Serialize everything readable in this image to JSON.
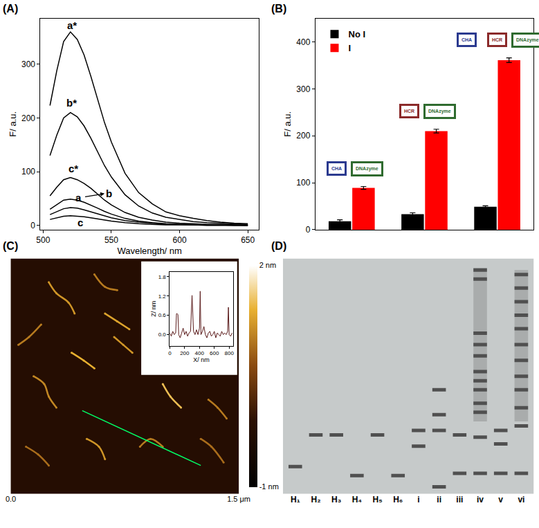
{
  "chart_data": [
    {
      "panel": "(A)",
      "type": "line",
      "x_label": "Wavelength/ nm",
      "y_label": "F/ a.u.",
      "x": [
        505,
        510,
        515,
        520,
        525,
        530,
        535,
        540,
        545,
        550,
        560,
        570,
        580,
        590,
        600,
        610,
        620,
        630,
        640,
        650
      ],
      "xlim": [
        498,
        658
      ],
      "xticks": [
        500,
        550,
        600,
        650
      ],
      "ylim": [
        -8,
        385
      ],
      "yticks": [
        0,
        100,
        200,
        300
      ],
      "grid": false,
      "color": "#000000",
      "series": [
        {
          "name": "a*",
          "label_at": [
            521,
            372
          ],
          "values": [
            223,
            288,
            342,
            360,
            346,
            317,
            277,
            234,
            191,
            155,
            97,
            61,
            40,
            25,
            18,
            13,
            9,
            6,
            4,
            3
          ]
        },
        {
          "name": "b*",
          "label_at": [
            521,
            228
          ],
          "values": [
            130,
            168,
            200,
            210,
            202,
            185,
            162,
            137,
            111,
            90,
            57,
            36,
            23,
            15,
            11,
            7,
            5,
            4,
            3,
            2
          ]
        },
        {
          "name": "c*",
          "label_at": [
            522,
            106
          ],
          "values": [
            55,
            71,
            85,
            89,
            85,
            78,
            69,
            58,
            47,
            38,
            24,
            15,
            10,
            6,
            4,
            3,
            2,
            2,
            1,
            1
          ]
        },
        {
          "name": "a",
          "label_at": [
            526,
            52
          ],
          "values": [
            30,
            39,
            47,
            49,
            47,
            43,
            38,
            32,
            26,
            21,
            13,
            8,
            5,
            3,
            2,
            2,
            1,
            1,
            1,
            0
          ]
        },
        {
          "name": "b",
          "label_at": [
            548,
            60
          ],
          "values": [
            20,
            26,
            31,
            33,
            32,
            29,
            25,
            21,
            17,
            14,
            9,
            6,
            4,
            2,
            2,
            1,
            1,
            1,
            0,
            0
          ]
        },
        {
          "name": "c",
          "label_at": [
            527,
            6
          ],
          "values": [
            11,
            14,
            17,
            18,
            17,
            16,
            14,
            12,
            10,
            8,
            5,
            3,
            2,
            1,
            1,
            1,
            0,
            0,
            0,
            0
          ]
        }
      ],
      "arrow": {
        "from": [
          530,
          53
        ],
        "to": [
          545,
          59
        ]
      }
    },
    {
      "panel": "(B)",
      "type": "bar",
      "y_label": "F/ a.u.",
      "categories": [
        null,
        null,
        null
      ],
      "ylim": [
        0,
        450
      ],
      "yticks": [
        0,
        100,
        200,
        300,
        400
      ],
      "grid": false,
      "legend": "upper left",
      "tick_labels": "y",
      "series": [
        {
          "name": "No I",
          "color": "#000000",
          "values": [
            18,
            33,
            49
          ],
          "errors": [
            3,
            3,
            2
          ]
        },
        {
          "name": "I",
          "color": "#ff0000",
          "values": [
            89,
            210,
            361
          ],
          "errors": [
            3,
            4,
            5
          ]
        }
      ],
      "icons": [
        [
          {
            "text": "CHA",
            "color": "#2b3a8f"
          },
          {
            "text": "DNAzyme",
            "color": "#2f6b2f"
          }
        ],
        [
          {
            "text": "HCR",
            "color": "#8b2a2a"
          },
          {
            "text": "DNAzyme",
            "color": "#2f6b2f"
          }
        ],
        [
          {
            "text": "CHA",
            "color": "#2b3a8f"
          },
          {
            "text": "HCR",
            "color": "#8b2a2a"
          },
          {
            "text": "DNAzyme",
            "color": "#2f6b2f"
          }
        ]
      ]
    },
    {
      "panel": "(C)",
      "type": "image",
      "xlim": [
        0,
        1.5
      ],
      "ylim": [
        0,
        1.5
      ],
      "xticks": [
        {
          "value": 0,
          "label": "0.0"
        },
        {
          "value": 1.5,
          "label": "1.5 μm"
        }
      ],
      "tick_labels": "x",
      "background_height": -0.2,
      "colorbar": {
        "range": [
          -1,
          2
        ],
        "ticks": [
          {
            "value": -1,
            "label": "-1 nm"
          },
          {
            "value": 2,
            "label": "2 nm"
          }
        ]
      },
      "fibers": [
        {
          "x": [
            0.05,
            0.12,
            0.2
          ],
          "y": [
            0.95,
            1.0,
            1.08
          ],
          "height": 1.0
        },
        {
          "x": [
            0.25,
            0.3,
            0.38,
            0.42
          ],
          "y": [
            1.35,
            1.28,
            1.22,
            1.15
          ],
          "height": 1.2
        },
        {
          "x": [
            0.55,
            0.62,
            0.7
          ],
          "y": [
            1.4,
            1.32,
            1.3
          ],
          "height": 1.0
        },
        {
          "x": [
            0.62,
            0.7,
            0.78
          ],
          "y": [
            1.15,
            1.1,
            1.05
          ],
          "height": 1.3
        },
        {
          "x": [
            0.15,
            0.22,
            0.25,
            0.3
          ],
          "y": [
            0.75,
            0.7,
            0.62,
            0.55
          ],
          "height": 1.1
        },
        {
          "x": [
            0.4,
            0.48,
            0.55
          ],
          "y": [
            0.9,
            0.85,
            0.8
          ],
          "height": 1.4
        },
        {
          "x": [
            0.68,
            0.74,
            0.8
          ],
          "y": [
            1.0,
            0.95,
            0.9
          ],
          "height": 1.2
        },
        {
          "x": [
            1.0,
            1.05,
            1.12
          ],
          "y": [
            0.7,
            0.62,
            0.55
          ],
          "height": 1.5
        },
        {
          "x": [
            1.3,
            1.36,
            1.42
          ],
          "y": [
            0.6,
            0.55,
            0.48
          ],
          "height": 1.0
        },
        {
          "x": [
            0.1,
            0.18,
            0.25
          ],
          "y": [
            0.3,
            0.25,
            0.18
          ],
          "height": 0.9
        },
        {
          "x": [
            0.5,
            0.58,
            0.62
          ],
          "y": [
            0.35,
            0.3,
            0.22
          ],
          "height": 1.2
        },
        {
          "x": [
            0.85,
            0.92,
            1.0
          ],
          "y": [
            0.3,
            0.35,
            0.3
          ],
          "height": 1.0
        },
        {
          "x": [
            1.25,
            1.32,
            1.4
          ],
          "y": [
            0.35,
            0.3,
            0.2
          ],
          "height": 0.9
        }
      ],
      "profile_line": {
        "x": [
          0.47,
          1.25
        ],
        "y": [
          0.53,
          0.18
        ],
        "color": "#00ff66"
      },
      "inset": {
        "type": "line",
        "x_label": "X/ nm",
        "y_label": "Z/ nm",
        "color": "#5a1a1a",
        "x": [
          0,
          20,
          40,
          60,
          80,
          90,
          100,
          110,
          120,
          140,
          160,
          180,
          200,
          220,
          240,
          260,
          280,
          300,
          320,
          340,
          360,
          380,
          400,
          410,
          420,
          440,
          460,
          480,
          500,
          520,
          540,
          560,
          580,
          600,
          620,
          640,
          660,
          680,
          700,
          720,
          740,
          760,
          780,
          790,
          800,
          820,
          840
        ],
        "values": [
          0.05,
          -0.05,
          0.1,
          0.0,
          0.05,
          0.65,
          0.65,
          0.62,
          0.0,
          -0.1,
          0.05,
          0.2,
          0.0,
          0.1,
          -0.05,
          0.05,
          0.1,
          1.22,
          0.1,
          0.0,
          0.15,
          0.0,
          0.2,
          1.35,
          0.0,
          0.1,
          0.25,
          0.0,
          -0.1,
          0.05,
          0.1,
          -0.05,
          0.0,
          0.1,
          -0.1,
          0.05,
          0.0,
          -0.05,
          0.1,
          0.0,
          0.05,
          0.0,
          0.1,
          0.85,
          0.0,
          -0.05,
          0.05
        ],
        "xlim": [
          0,
          850
        ],
        "xticks": [
          0,
          200,
          400,
          600,
          800
        ],
        "ylim": [
          -0.35,
          1.95
        ],
        "yticks": [
          {
            "value": 0,
            "label": "0.0"
          },
          0.6,
          1.2,
          1.8
        ]
      }
    },
    {
      "panel": "(D)",
      "type": "gel",
      "categories": [
        "H₁",
        "H₂",
        "H₃",
        "H₄",
        "H₅",
        "H₆",
        "i",
        "ii",
        "iii",
        "iv",
        "v",
        "vi"
      ],
      "ylim": [
        1.02,
        -0.02
      ],
      "tick_labels": "x",
      "color": "#505050",
      "bands": [
        [
          0.9
        ],
        [
          0.76
        ],
        [
          0.76
        ],
        [
          0.94
        ],
        [
          0.76
        ],
        [
          0.94
        ],
        [
          0.74,
          0.81
        ],
        [
          0.56,
          0.67,
          0.74,
          0.99
        ],
        [
          0.76,
          0.93
        ],
        [
          0.03,
          0.07,
          0.31,
          0.36,
          0.41,
          0.48,
          0.52,
          0.56,
          0.62,
          0.66,
          0.77,
          0.93
        ],
        [
          0.74,
          0.8,
          0.93
        ],
        [
          0.05,
          0.11,
          0.17,
          0.23,
          0.29,
          0.36,
          0.43,
          0.5,
          0.56,
          0.64,
          0.72,
          0.93
        ]
      ],
      "smears": [
        null,
        null,
        null,
        null,
        null,
        null,
        null,
        null,
        null,
        [
          0.02,
          0.7
        ],
        null,
        [
          0.03,
          0.7
        ]
      ]
    }
  ]
}
